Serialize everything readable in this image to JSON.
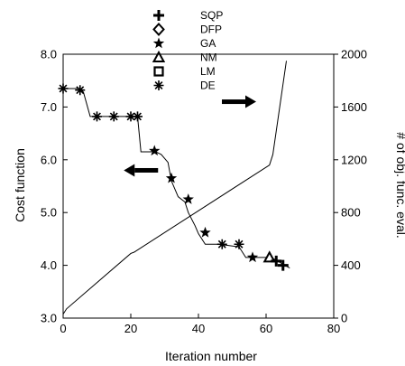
{
  "chart_data": {
    "type": "line",
    "xlabel": "Iteration number",
    "ylabel": "Cost function",
    "y2label": "# of obj. func. eval.",
    "xlim": [
      0,
      80
    ],
    "ylim": [
      3.0,
      8.0
    ],
    "y2lim": [
      0,
      2000
    ],
    "x_ticks": [
      0,
      20,
      40,
      60,
      80
    ],
    "y_ticks": [
      3.0,
      4.0,
      5.0,
      6.0,
      7.0,
      8.0
    ],
    "y2_ticks": [
      0,
      400,
      800,
      1200,
      1600,
      2000
    ],
    "x_tick_labels": [
      "0",
      "20",
      "40",
      "60",
      "80"
    ],
    "y_tick_labels": [
      "3.0",
      "4.0",
      "5.0",
      "6.0",
      "7.0",
      "8.0"
    ],
    "y2_tick_labels": [
      "0",
      "400",
      "800",
      "1200",
      "1600",
      "2000"
    ],
    "grid": false,
    "legend": {
      "placement": "top-center",
      "entries": [
        {
          "label": "SQP",
          "marker": "plus"
        },
        {
          "label": "DFP",
          "marker": "diamond"
        },
        {
          "label": "GA",
          "marker": "star"
        },
        {
          "label": "NM",
          "marker": "triangle"
        },
        {
          "label": "LM",
          "marker": "square"
        },
        {
          "label": "DE",
          "marker": "asterisk"
        }
      ]
    },
    "cost_line": {
      "axis": "left",
      "x": [
        0,
        5,
        6,
        8,
        20,
        22,
        23,
        24,
        26,
        26.5,
        29,
        31,
        32,
        34,
        36,
        37,
        39,
        40,
        42,
        43,
        45,
        46,
        52,
        54,
        55,
        60,
        62,
        63,
        65,
        67
      ],
      "y": [
        7.35,
        7.35,
        7.28,
        6.82,
        6.82,
        6.82,
        6.15,
        6.15,
        6.15,
        6.18,
        6.1,
        5.95,
        5.6,
        5.3,
        5.2,
        5.0,
        4.75,
        4.6,
        4.4,
        4.4,
        4.4,
        4.4,
        4.35,
        4.15,
        4.15,
        4.15,
        4.13,
        4.1,
        4.02,
        3.95
      ]
    },
    "eval_line": {
      "axis": "right",
      "x": [
        0,
        1,
        20,
        21,
        61,
        62,
        66
      ],
      "y": [
        30,
        70,
        490,
        500,
        1160,
        1240,
        1950
      ]
    },
    "markers": [
      {
        "marker": "asterisk",
        "x": 0,
        "y": 7.35
      },
      {
        "marker": "asterisk",
        "x": 5,
        "y": 7.32
      },
      {
        "marker": "asterisk",
        "x": 10,
        "y": 6.82
      },
      {
        "marker": "asterisk",
        "x": 15,
        "y": 6.82
      },
      {
        "marker": "asterisk",
        "x": 20,
        "y": 6.82
      },
      {
        "marker": "asterisk",
        "x": 22,
        "y": 6.82
      },
      {
        "marker": "star",
        "x": 27,
        "y": 6.17
      },
      {
        "marker": "star",
        "x": 32,
        "y": 5.65
      },
      {
        "marker": "star",
        "x": 37,
        "y": 5.25
      },
      {
        "marker": "star",
        "x": 42,
        "y": 4.62
      },
      {
        "marker": "asterisk",
        "x": 47,
        "y": 4.4
      },
      {
        "marker": "asterisk",
        "x": 52,
        "y": 4.4
      },
      {
        "marker": "star",
        "x": 56,
        "y": 4.15
      },
      {
        "marker": "triangle",
        "x": 61,
        "y": 4.15
      },
      {
        "marker": "plus",
        "x": 63,
        "y": 4.08
      },
      {
        "marker": "plus",
        "x": 65,
        "y": 4.0
      }
    ],
    "arrows": [
      {
        "direction": "left",
        "x": 27,
        "y": 5.8,
        "points_to_axis": "left"
      },
      {
        "direction": "right",
        "x": 48,
        "y": 7.1,
        "points_to_axis": "right"
      }
    ]
  }
}
